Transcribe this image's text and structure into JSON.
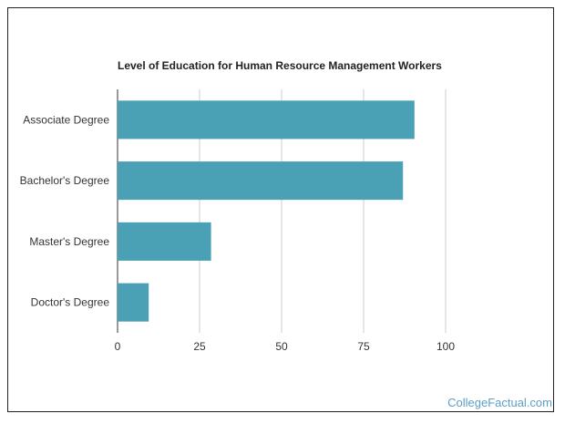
{
  "chart_data": {
    "type": "bar",
    "orientation": "horizontal",
    "title": "Level of Education for Human Resource Management Workers",
    "categories": [
      "Associate Degree",
      "Bachelor's Degree",
      "Master's Degree",
      "Doctor's Degree"
    ],
    "values": [
      90.5,
      87,
      28.5,
      9.5
    ],
    "xlabel": "",
    "ylabel": "",
    "xlim": [
      0,
      100
    ],
    "xticks": [
      0,
      25,
      50,
      75,
      100
    ],
    "grid": "vertical",
    "bar_color": "#4aa0b5"
  },
  "watermark": "CollegeFactual.com",
  "colors": {
    "grid": "#cccccc",
    "axis": "#333333",
    "watermark": "#5a9fc7"
  }
}
